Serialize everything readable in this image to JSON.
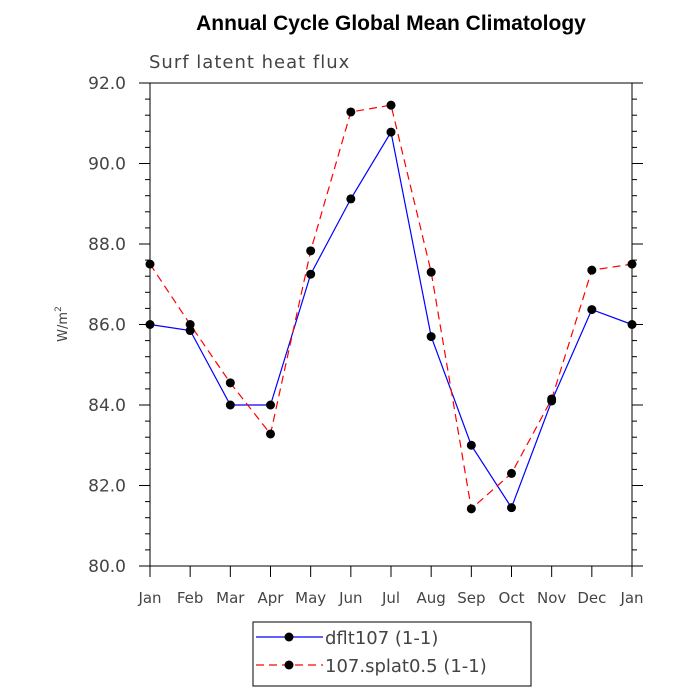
{
  "chart_data": {
    "type": "line",
    "title": "Annual Cycle Global Mean Climatology",
    "subtitle": "Surf latent heat flux",
    "ylabel": "W/m2",
    "ylabel_base": "W/m",
    "ylabel_sup": "2",
    "categories": [
      "Jan",
      "Feb",
      "Mar",
      "Apr",
      "May",
      "Jun",
      "Jul",
      "Aug",
      "Sep",
      "Oct",
      "Nov",
      "Dec",
      "Jan"
    ],
    "ylim": [
      80.0,
      92.0
    ],
    "yticks": [
      "80.0",
      "82.0",
      "84.0",
      "86.0",
      "88.0",
      "90.0",
      "92.0"
    ],
    "legend_placement": "bottom",
    "grid": false,
    "series": [
      {
        "name": "dflt107 (1-1)",
        "color": "#0000ff",
        "dash": "solid",
        "values": [
          86.0,
          85.85,
          84.0,
          84.0,
          87.25,
          89.12,
          90.78,
          85.7,
          83.0,
          81.45,
          84.1,
          86.37,
          86.0
        ]
      },
      {
        "name": "107.splat0.5 (1-1)",
        "color": "#ff0000",
        "dash": "dashed",
        "values": [
          87.5,
          86.0,
          84.55,
          83.28,
          87.83,
          91.28,
          91.45,
          87.3,
          81.42,
          82.3,
          84.15,
          87.35,
          87.5
        ]
      }
    ]
  }
}
